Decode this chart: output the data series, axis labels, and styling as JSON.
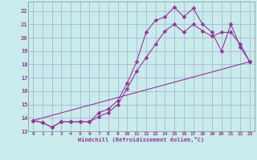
{
  "xlabel": "Windchill (Refroidissement éolien,°C)",
  "bg_color": "#c8ecec",
  "grid_color": "#aaaacc",
  "line_color": "#993399",
  "xlim": [
    -0.5,
    23.5
  ],
  "ylim": [
    13.0,
    22.7
  ],
  "yticks": [
    13,
    14,
    15,
    16,
    17,
    18,
    19,
    20,
    21,
    22
  ],
  "xticks": [
    0,
    1,
    2,
    3,
    4,
    5,
    6,
    7,
    8,
    9,
    10,
    11,
    12,
    13,
    14,
    15,
    16,
    17,
    18,
    19,
    20,
    21,
    22,
    23
  ],
  "line1_x": [
    0,
    1,
    2,
    3,
    4,
    5,
    6,
    7,
    8,
    9,
    10,
    11,
    12,
    13,
    14,
    15,
    16,
    17,
    18,
    19,
    20,
    21,
    22,
    23
  ],
  "line1_y": [
    13.8,
    13.65,
    13.3,
    13.7,
    13.7,
    13.7,
    13.7,
    14.4,
    14.65,
    15.3,
    16.6,
    18.2,
    20.4,
    21.3,
    21.55,
    22.3,
    21.55,
    22.2,
    21.0,
    20.4,
    19.0,
    21.0,
    19.3,
    18.2
  ],
  "line2_x": [
    0,
    1,
    2,
    3,
    4,
    5,
    6,
    7,
    8,
    9,
    10,
    11,
    12,
    13,
    14,
    15,
    16,
    17,
    18,
    19,
    20,
    21,
    22,
    23
  ],
  "line2_y": [
    13.8,
    13.65,
    13.3,
    13.7,
    13.7,
    13.7,
    13.7,
    14.1,
    14.4,
    15.0,
    16.2,
    17.5,
    18.5,
    19.5,
    20.5,
    21.0,
    20.4,
    21.0,
    20.5,
    20.1,
    20.4,
    20.4,
    19.5,
    18.2
  ],
  "line3_x": [
    0,
    23
  ],
  "line3_y": [
    13.8,
    18.2
  ],
  "markersize": 2.5
}
